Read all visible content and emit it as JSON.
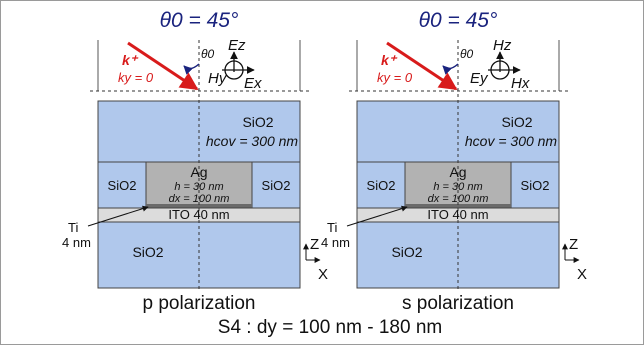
{
  "panels": [
    {
      "angle_title": "θ0 = 45°",
      "theta_label": "θ0",
      "k_label": "k⁺",
      "ky_label": "ky = 0",
      "field_top": "Ez",
      "field_left": "Hy",
      "field_right": "Ex",
      "cover_material": "SiO2",
      "cover_thickness": "hcov = 300 nm",
      "side_left": "SiO2",
      "side_right": "SiO2",
      "metal": "Ag",
      "metal_h": "h = 30 nm",
      "metal_dx": "dx = 100 nm",
      "ito": "ITO 40 nm",
      "ti_name": "Ti",
      "ti_thickness": "4 nm",
      "substrate": "SiO2",
      "axis_z": "Z",
      "axis_x": "X",
      "polarization": "p polarization"
    },
    {
      "angle_title": "θ0 = 45°",
      "theta_label": "θ0",
      "k_label": "k⁺",
      "ky_label": "ky = 0",
      "field_top": "Hz",
      "field_left": "Ey",
      "field_right": "Hx",
      "cover_material": "SiO2",
      "cover_thickness": "hcov = 300 nm",
      "side_left": "SiO2",
      "side_right": "SiO2",
      "metal": "Ag",
      "metal_h": "h = 30 nm",
      "metal_dx": "dx = 100 nm",
      "ito": "ITO 40 nm",
      "ti_name": "Ti",
      "ti_thickness": "4 nm",
      "substrate": "SiO2",
      "axis_z": "Z",
      "axis_x": "X",
      "polarization": "s polarization"
    }
  ],
  "caption": "S4 : dy = 100 nm - 180 nm",
  "colors": {
    "sio2": "#b0c8ec",
    "ag": "#b2b2b2",
    "ito": "#dcdcdc",
    "ti": "#6a6a6a",
    "wave": "#d81b1b",
    "title": "#1a237e"
  }
}
